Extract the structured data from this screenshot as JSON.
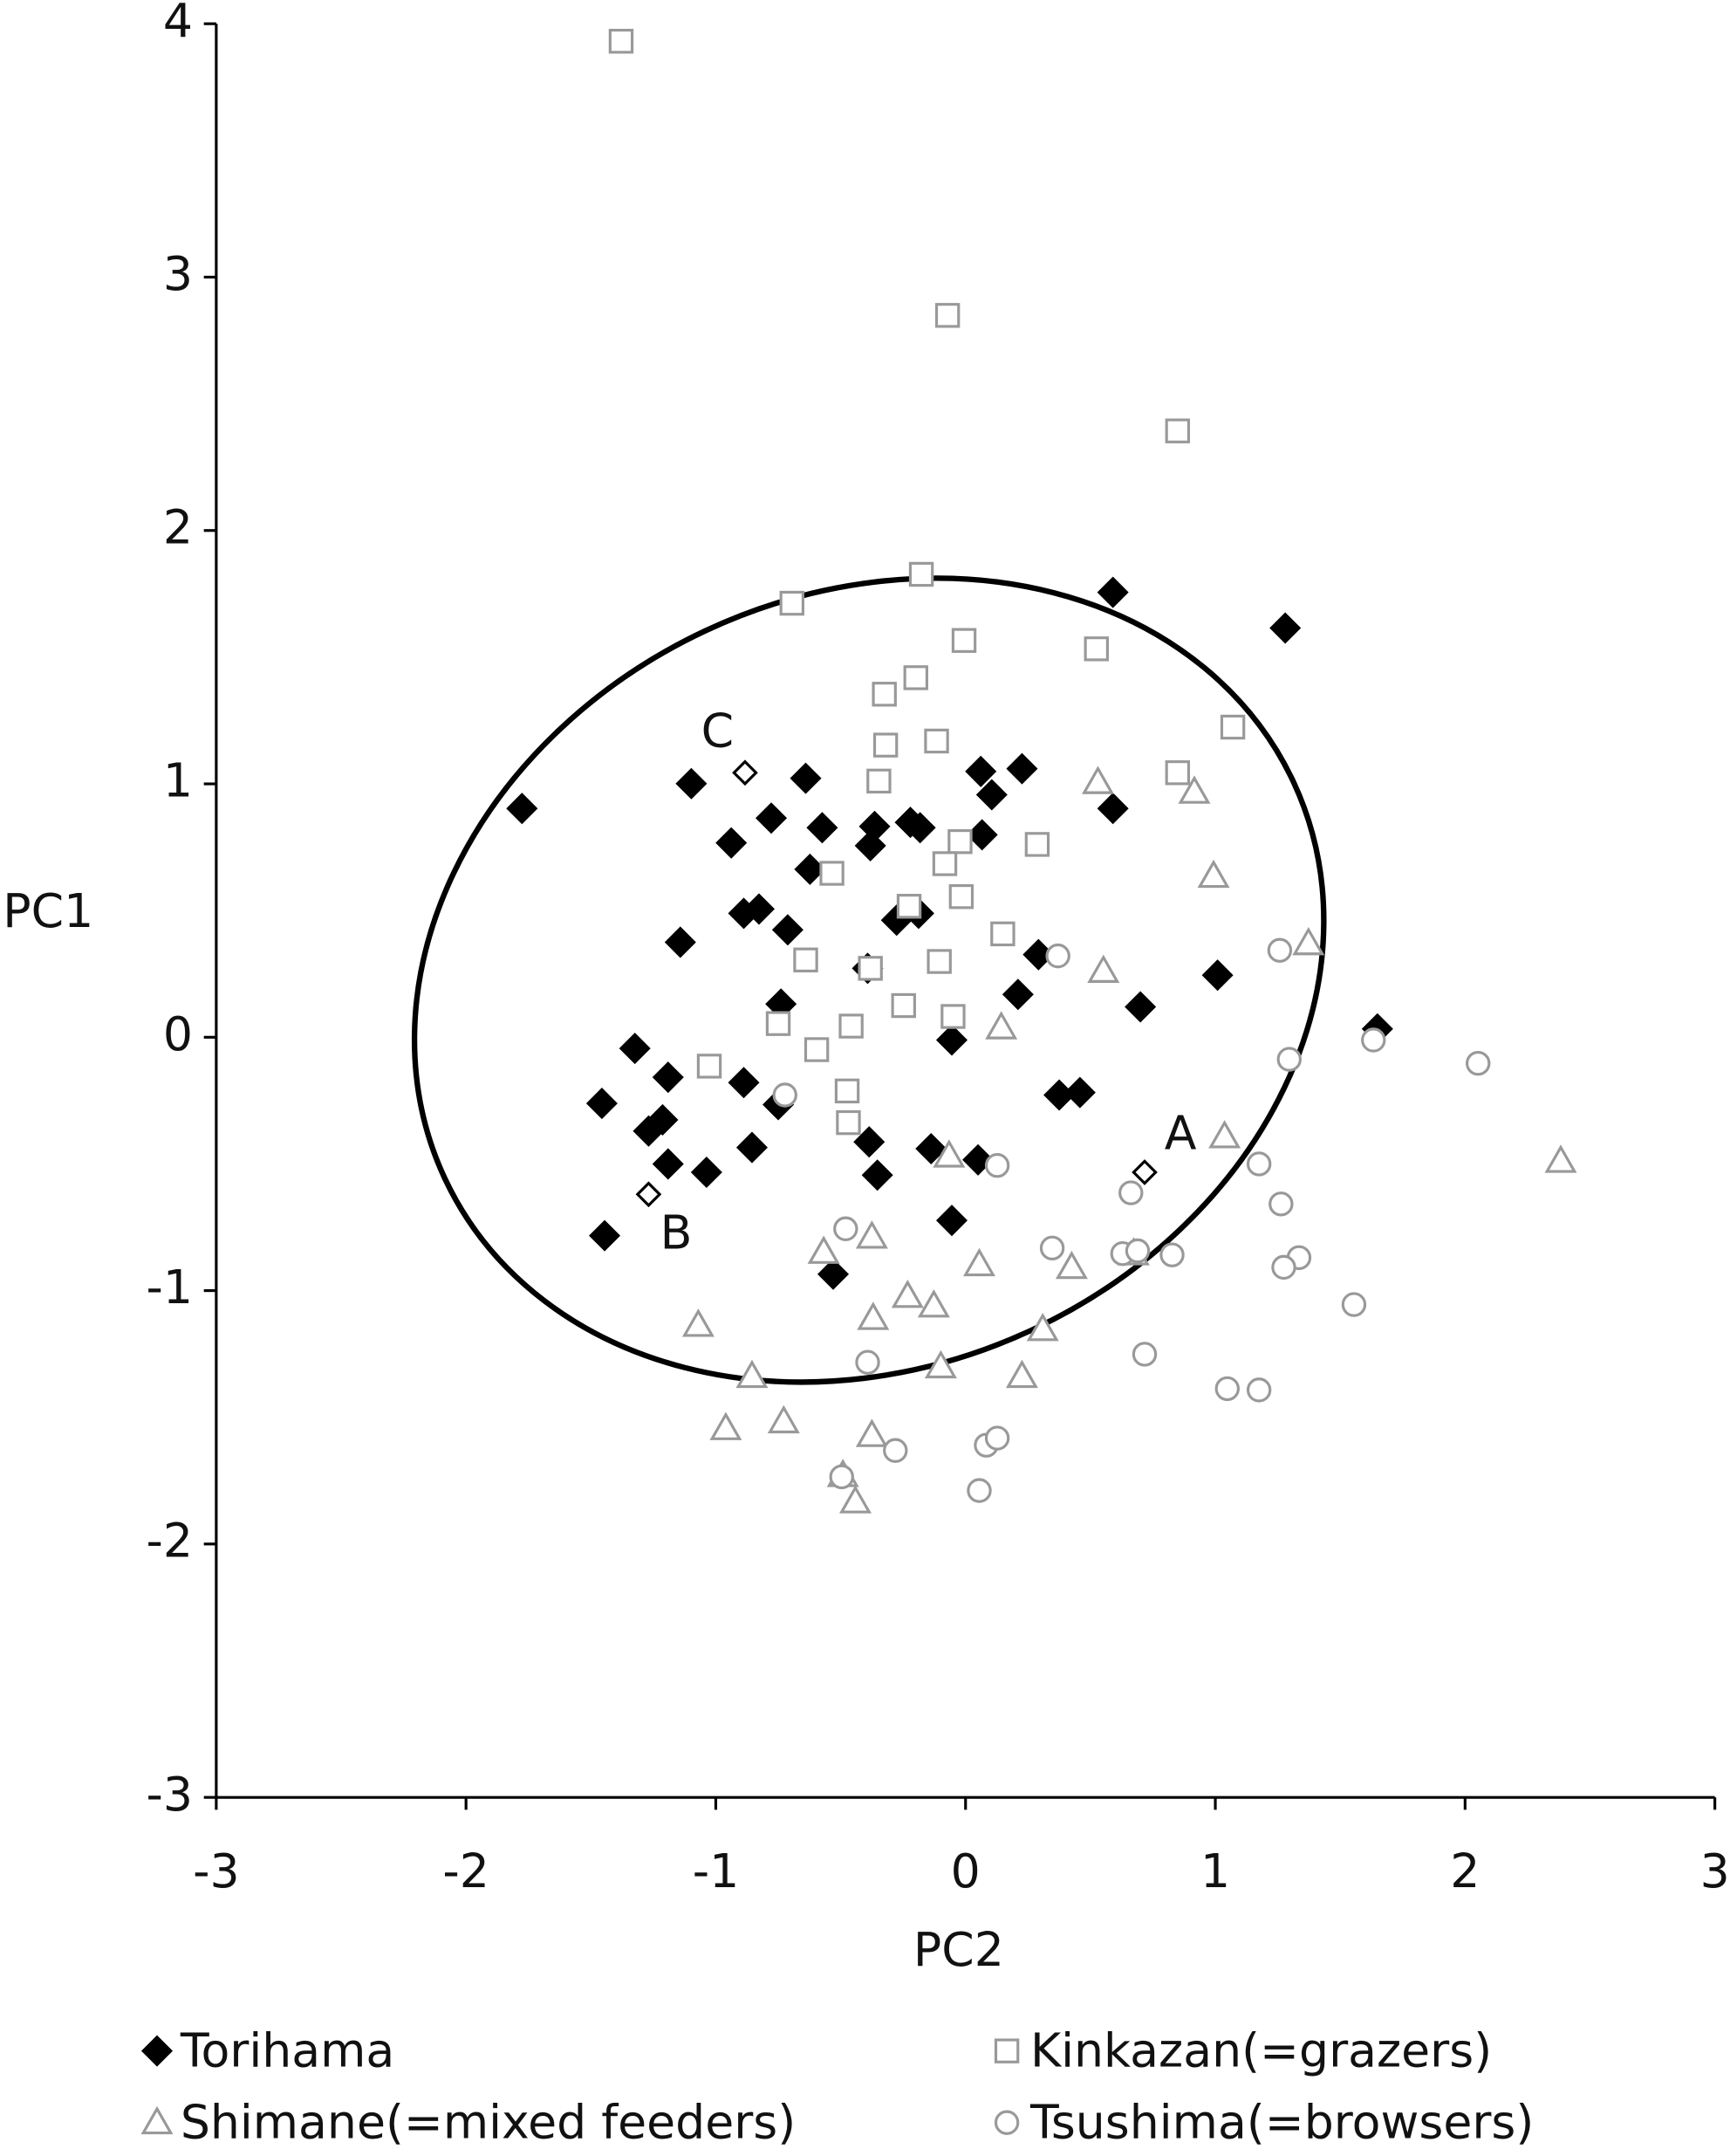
{
  "chart_data": {
    "type": "scatter",
    "x_label": "PC2",
    "y_label": "PC1",
    "xlim": [
      -3,
      3
    ],
    "ylim": [
      -3,
      4
    ],
    "xticks": [
      -3,
      -2,
      -1,
      0,
      1,
      2,
      3
    ],
    "yticks": [
      -3,
      -2,
      -1,
      0,
      1,
      2,
      3,
      4
    ],
    "legend": "bottom",
    "series": [
      {
        "name": "Torihama",
        "marker": "diamond",
        "filled": true,
        "color": "#000000",
        "x": [
          -1.776,
          0.59,
          1.28,
          -1.098,
          -0.64,
          0.061,
          0.226,
          0.105,
          0.59,
          -0.778,
          -0.938,
          -0.574,
          -0.364,
          -0.381,
          -0.221,
          -0.182,
          0.066,
          -0.623,
          -0.888,
          -0.827,
          -0.712,
          -1.142,
          -0.392,
          -0.276,
          -0.188,
          0.292,
          0.21,
          0.7,
          1.009,
          1.649,
          -0.739,
          -0.055,
          -1.324,
          -1.456,
          -1.191,
          -1.213,
          -1.269,
          -0.888,
          -0.75,
          -0.855,
          -1.037,
          -1.191,
          -1.445,
          -0.386,
          -0.353,
          -0.138,
          0.05,
          -0.055,
          -0.53,
          0.375,
          0.458
        ],
        "values": [
          0.903,
          1.756,
          1.615,
          1.001,
          1.022,
          1.049,
          1.06,
          0.957,
          0.903,
          0.865,
          0.767,
          0.827,
          0.832,
          0.756,
          0.848,
          0.827,
          0.799,
          0.663,
          0.489,
          0.506,
          0.424,
          0.375,
          0.272,
          0.462,
          0.489,
          0.326,
          0.169,
          0.12,
          0.245,
          0.033,
          0.131,
          -0.011,
          -0.044,
          -0.261,
          -0.158,
          -0.326,
          -0.37,
          -0.179,
          -0.266,
          -0.435,
          -0.533,
          -0.5,
          -0.783,
          -0.413,
          -0.544,
          -0.44,
          -0.484,
          -0.723,
          -0.935,
          -0.228,
          -0.218
        ]
      },
      {
        "name": "Kinkazan(=grazers)",
        "marker": "square",
        "filled": false,
        "color": "#999999",
        "x": [
          -1.379,
          -0.072,
          0.849,
          -0.695,
          -0.177,
          -0.006,
          0.524,
          -0.199,
          -0.325,
          1.07,
          -0.32,
          -0.116,
          0.849,
          -0.347,
          -0.022,
          0.287,
          -0.083,
          -0.535,
          -0.226,
          -0.017,
          0.149,
          -0.64,
          -0.381,
          -0.105,
          -0.248,
          -0.05,
          -0.75,
          -0.458,
          -1.026,
          -0.596,
          -0.474,
          -0.469
        ],
        "values": [
          3.931,
          2.849,
          2.393,
          1.713,
          1.827,
          1.566,
          1.533,
          1.419,
          1.354,
          1.224,
          1.153,
          1.169,
          1.044,
          1.011,
          0.772,
          0.761,
          0.685,
          0.647,
          0.517,
          0.555,
          0.408,
          0.305,
          0.272,
          0.299,
          0.125,
          0.082,
          0.054,
          0.044,
          -0.114,
          -0.049,
          -0.212,
          -0.337
        ]
      },
      {
        "name": "Shimane(=mixed feeders)",
        "marker": "triangle",
        "filled": false,
        "color": "#999999",
        "x": [
          0.53,
          0.916,
          0.993,
          1.373,
          0.552,
          0.143,
          1.037,
          2.383,
          -0.066,
          -0.568,
          -0.375,
          0.055,
          0.425,
          0.673,
          -1.07,
          -0.37,
          -0.232,
          -0.127,
          0.309,
          -0.855,
          -0.099,
          0.226,
          -0.96,
          -0.728,
          -0.375,
          -0.491,
          -0.441
        ],
        "values": [
          1.006,
          0.968,
          0.636,
          0.37,
          0.261,
          0.038,
          -0.392,
          -0.489,
          -0.468,
          -0.848,
          -0.788,
          -0.897,
          -0.908,
          -0.854,
          -1.136,
          -1.109,
          -1.022,
          -1.06,
          -1.153,
          -1.338,
          -1.3,
          -1.338,
          -1.544,
          -1.517,
          -1.571,
          -1.729,
          -1.833
        ]
      },
      {
        "name": "Tsushima(=browsers)",
        "marker": "circle",
        "filled": false,
        "color": "#999999",
        "x": [
          1.258,
          0.37,
          1.296,
          1.633,
          2.052,
          -0.723,
          0.127,
          1.175,
          0.662,
          1.263,
          -0.48,
          0.347,
          0.629,
          0.689,
          0.827,
          1.335,
          1.274,
          1.555,
          -0.392,
          0.717,
          1.048,
          1.175,
          -0.281,
          0.083,
          0.127,
          -0.496,
          0.055
        ],
        "values": [
          0.343,
          0.321,
          -0.087,
          -0.011,
          -0.103,
          -0.228,
          -0.506,
          -0.5,
          -0.614,
          -0.658,
          -0.756,
          -0.832,
          -0.854,
          -0.843,
          -0.859,
          -0.87,
          -0.908,
          -1.055,
          -1.283,
          -1.251,
          -1.387,
          -1.392,
          -1.631,
          -1.61,
          -1.582,
          -1.735,
          -1.789
        ]
      }
    ],
    "annotations": [
      {
        "text": "A",
        "x": 0.717,
        "y": -0.533
      },
      {
        "text": "B",
        "x": -1.269,
        "y": -0.62
      },
      {
        "text": "C",
        "x": -0.883,
        "y": 1.044
      }
    ]
  }
}
